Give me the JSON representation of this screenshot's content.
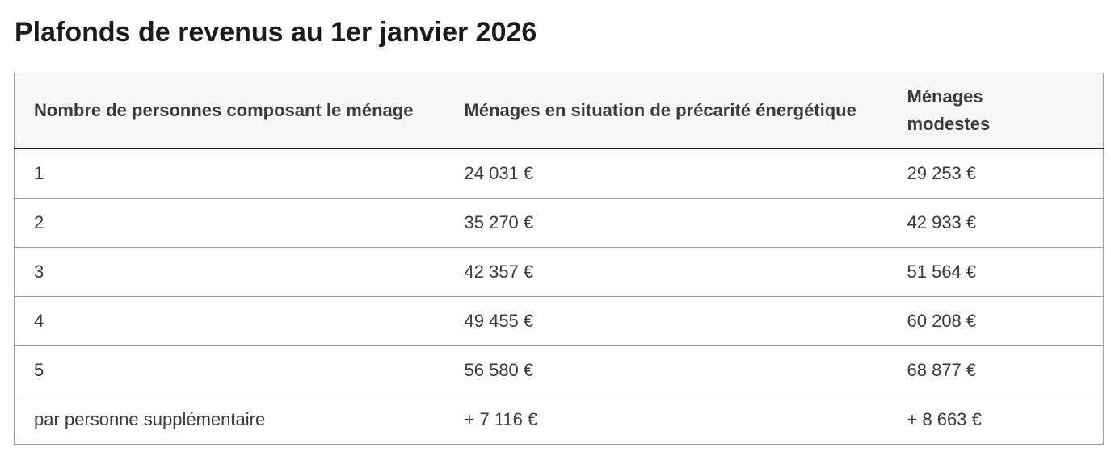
{
  "page": {
    "title": "Plafonds de revenus au 1er janvier 2026"
  },
  "table": {
    "columns": [
      {
        "label": "Nombre de personnes composant le ménage"
      },
      {
        "label": "Ménages en situation de précarité énergétique"
      },
      {
        "label": "Ménages modestes"
      }
    ],
    "rows": [
      {
        "cells": [
          "1",
          "24 031 €",
          "29 253 €"
        ]
      },
      {
        "cells": [
          "2",
          "35 270 €",
          "42 933 €"
        ]
      },
      {
        "cells": [
          "3",
          "42 357 €",
          "51 564 €"
        ]
      },
      {
        "cells": [
          "4",
          "49 455 €",
          "60 208 €"
        ]
      },
      {
        "cells": [
          "5",
          "56 580 €",
          "68 877 €"
        ]
      },
      {
        "cells": [
          "par personne supplémentaire",
          "+ 7 116 €",
          "+ 8 663 €"
        ]
      }
    ]
  },
  "colors": {
    "title_text": "#1b1b1b",
    "body_text": "#3a3a3a",
    "header_background": "#f6f6f6",
    "header_bottom_border": "#242424",
    "row_separator": "#9b9b9b",
    "table_border": "#9e9e9e"
  }
}
